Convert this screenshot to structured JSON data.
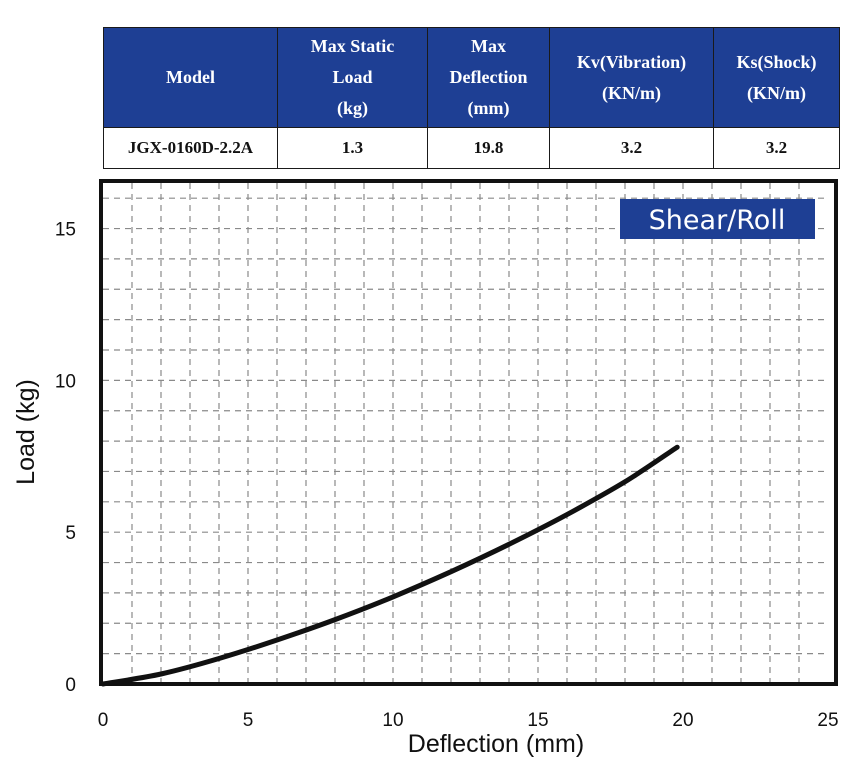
{
  "table": {
    "headers": [
      [
        "Model"
      ],
      [
        "Max Static",
        "Load",
        "(kg)"
      ],
      [
        "Max",
        "Deflection",
        "(mm)"
      ],
      [
        "Kv(Vibration)",
        "(KN/m)"
      ],
      [
        "Ks(Shock)",
        "(KN/m)"
      ]
    ],
    "row": {
      "model": "JGX-0160D-2.2A",
      "max_static_load": "1.3",
      "max_deflection": "19.8",
      "kv": "3.2",
      "ks": "3.2"
    },
    "header_color": "#1e3f94"
  },
  "chart_data": {
    "type": "line",
    "title": "",
    "badge": "Shear/Roll",
    "badge_color": "#1e3f94",
    "xlabel": "Deflection (mm)",
    "ylabel": "Load (kg)",
    "xlim": [
      0,
      25
    ],
    "ylim": [
      0,
      16.5
    ],
    "x_ticks": [
      0,
      5,
      10,
      15,
      20,
      25
    ],
    "y_ticks": [
      0,
      5,
      10,
      15
    ],
    "grid": true,
    "legend": "none",
    "series": [
      {
        "color": "#111111",
        "x": [
          0,
          2,
          4,
          6,
          8,
          10,
          12,
          14,
          16,
          18,
          19.8
        ],
        "y": [
          0,
          0.33,
          0.84,
          1.45,
          2.12,
          2.87,
          3.7,
          4.6,
          5.58,
          6.66,
          7.8
        ]
      }
    ]
  }
}
